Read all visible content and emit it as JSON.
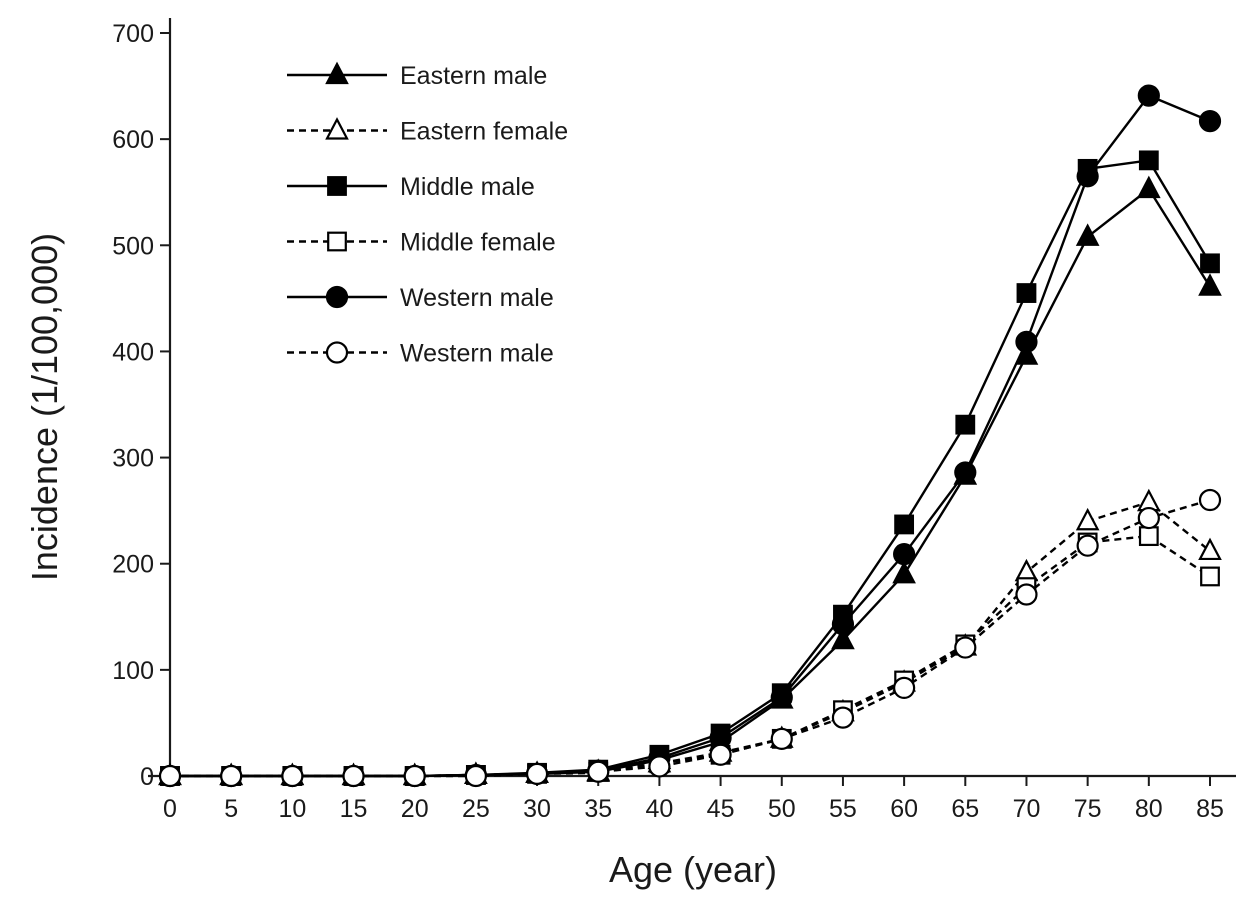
{
  "chart_data": {
    "type": "line",
    "title": "",
    "xlabel": "Age (year)",
    "ylabel": "Incidence (1/100,000)",
    "xlim": [
      0,
      85
    ],
    "ylim": [
      0,
      700
    ],
    "x": [
      0,
      5,
      10,
      15,
      20,
      25,
      30,
      35,
      40,
      45,
      50,
      55,
      60,
      65,
      70,
      75,
      80,
      85
    ],
    "xticks": [
      "0",
      "5",
      "10",
      "15",
      "20",
      "25",
      "30",
      "35",
      "40",
      "45",
      "50",
      "55",
      "60",
      "65",
      "70",
      "75",
      "80",
      "85"
    ],
    "yticks": [
      "0",
      "100",
      "200",
      "300",
      "400",
      "500",
      "600",
      "700"
    ],
    "grid": false,
    "legend_position": "top-left",
    "series": [
      {
        "name": "Eastern male",
        "marker": "triangle",
        "filled": true,
        "dashed": false,
        "values": [
          0,
          0,
          0,
          0,
          0,
          1,
          2,
          4,
          15,
          32,
          72,
          128,
          190,
          283,
          396,
          508,
          553,
          461
        ]
      },
      {
        "name": "Eastern female",
        "marker": "triangle",
        "filled": false,
        "dashed": true,
        "values": [
          0,
          0,
          0,
          0,
          0,
          1,
          2,
          3,
          12,
          22,
          35,
          60,
          88,
          122,
          192,
          240,
          258,
          212
        ]
      },
      {
        "name": "Middle male",
        "marker": "square",
        "filled": true,
        "dashed": false,
        "values": [
          0,
          0,
          0,
          0,
          0,
          1,
          3,
          6,
          20,
          40,
          78,
          152,
          237,
          331,
          455,
          572,
          580,
          483
        ]
      },
      {
        "name": "Middle female",
        "marker": "square",
        "filled": false,
        "dashed": true,
        "values": [
          0,
          0,
          0,
          0,
          0,
          1,
          2,
          4,
          12,
          20,
          35,
          62,
          90,
          124,
          178,
          220,
          226,
          188
        ]
      },
      {
        "name": "Western male",
        "marker": "circle",
        "filled": true,
        "dashed": false,
        "values": [
          0,
          0,
          0,
          0,
          0,
          1,
          2,
          5,
          17,
          36,
          74,
          143,
          209,
          286,
          409,
          565,
          641,
          617
        ]
      },
      {
        "name": "Western male",
        "marker": "circle",
        "filled": false,
        "dashed": true,
        "values": [
          0,
          0,
          0,
          0,
          0,
          0,
          2,
          4,
          9,
          20,
          35,
          55,
          83,
          121,
          171,
          217,
          243,
          260
        ]
      }
    ]
  }
}
